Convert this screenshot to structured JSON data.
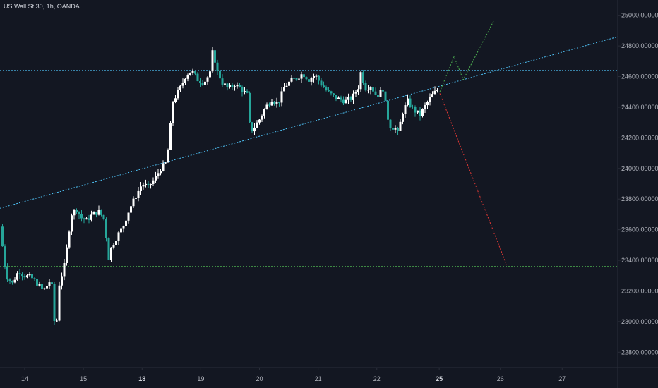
{
  "symbol_title": "US Wall St 30, 1h, OANDA",
  "colors": {
    "background": "#131722",
    "axis_border": "#2a2e39",
    "text": "#b2b5be",
    "candle_up": "#ffffff",
    "candle_down": "#26a69a",
    "resistance_line": "#4fc3f7",
    "support_line": "#4caf50",
    "bullish_projection": "#4caf50",
    "bearish_projection": "#e53935"
  },
  "chart_data": {
    "type": "candlestick",
    "title": "US Wall St 30, 1h, OANDA",
    "y_axis": {
      "side": "right",
      "range": [
        22700,
        25100
      ],
      "ticks": [
        "25000.00000",
        "24800.00000",
        "24600.00000",
        "24400.00000",
        "24200.00000",
        "24000.00000",
        "23800.00000",
        "23600.00000",
        "23400.00000",
        "23200.00000",
        "23000.00000",
        "22800.00000"
      ]
    },
    "x_axis": {
      "ticks": [
        {
          "label": "14",
          "t": 0.04,
          "bold": false
        },
        {
          "label": "15",
          "t": 0.135,
          "bold": false
        },
        {
          "label": "18",
          "t": 0.23,
          "bold": true
        },
        {
          "label": "19",
          "t": 0.325,
          "bold": false
        },
        {
          "label": "20",
          "t": 0.42,
          "bold": false
        },
        {
          "label": "21",
          "t": 0.515,
          "bold": false
        },
        {
          "label": "22",
          "t": 0.61,
          "bold": false
        },
        {
          "label": "25",
          "t": 0.711,
          "bold": true
        },
        {
          "label": "26",
          "t": 0.81,
          "bold": false
        },
        {
          "label": "27",
          "t": 0.91,
          "bold": false
        }
      ]
    },
    "grid": false,
    "price_path": [
      [
        0.0,
        23620
      ],
      [
        0.01,
        23300
      ],
      [
        0.02,
        23250
      ],
      [
        0.03,
        23330
      ],
      [
        0.04,
        23300
      ],
      [
        0.05,
        23290
      ],
      [
        0.06,
        23250
      ],
      [
        0.07,
        23200
      ],
      [
        0.08,
        23260
      ],
      [
        0.085,
        23220
      ],
      [
        0.09,
        22860
      ],
      [
        0.095,
        23230
      ],
      [
        0.105,
        23380
      ],
      [
        0.115,
        23700
      ],
      [
        0.125,
        23740
      ],
      [
        0.13,
        23680
      ],
      [
        0.14,
        23660
      ],
      [
        0.15,
        23700
      ],
      [
        0.16,
        23720
      ],
      [
        0.17,
        23660
      ],
      [
        0.175,
        23400
      ],
      [
        0.18,
        23480
      ],
      [
        0.19,
        23560
      ],
      [
        0.2,
        23630
      ],
      [
        0.21,
        23740
      ],
      [
        0.22,
        23820
      ],
      [
        0.23,
        23900
      ],
      [
        0.24,
        23880
      ],
      [
        0.25,
        23930
      ],
      [
        0.26,
        24000
      ],
      [
        0.27,
        24040
      ],
      [
        0.28,
        24440
      ],
      [
        0.29,
        24510
      ],
      [
        0.3,
        24600
      ],
      [
        0.31,
        24640
      ],
      [
        0.32,
        24580
      ],
      [
        0.33,
        24560
      ],
      [
        0.34,
        24620
      ],
      [
        0.345,
        24790
      ],
      [
        0.35,
        24650
      ],
      [
        0.36,
        24560
      ],
      [
        0.37,
        24520
      ],
      [
        0.38,
        24550
      ],
      [
        0.39,
        24520
      ],
      [
        0.4,
        24480
      ],
      [
        0.405,
        24240
      ],
      [
        0.41,
        24260
      ],
      [
        0.42,
        24320
      ],
      [
        0.43,
        24400
      ],
      [
        0.44,
        24450
      ],
      [
        0.45,
        24420
      ],
      [
        0.46,
        24530
      ],
      [
        0.47,
        24570
      ],
      [
        0.48,
        24590
      ],
      [
        0.49,
        24620
      ],
      [
        0.5,
        24580
      ],
      [
        0.51,
        24610
      ],
      [
        0.52,
        24550
      ],
      [
        0.53,
        24500
      ],
      [
        0.54,
        24470
      ],
      [
        0.55,
        24450
      ],
      [
        0.56,
        24440
      ],
      [
        0.57,
        24460
      ],
      [
        0.58,
        24530
      ],
      [
        0.585,
        24650
      ],
      [
        0.59,
        24520
      ],
      [
        0.6,
        24540
      ],
      [
        0.61,
        24470
      ],
      [
        0.62,
        24520
      ],
      [
        0.625,
        24400
      ],
      [
        0.63,
        24280
      ],
      [
        0.64,
        24260
      ],
      [
        0.645,
        24220
      ],
      [
        0.65,
        24350
      ],
      [
        0.66,
        24440
      ],
      [
        0.67,
        24380
      ],
      [
        0.68,
        24350
      ],
      [
        0.69,
        24420
      ],
      [
        0.7,
        24480
      ],
      [
        0.71,
        24520
      ]
    ],
    "drawings": [
      {
        "name": "resistance-line",
        "kind": "horizontal",
        "price": 24640,
        "color_key": "resistance_line"
      },
      {
        "name": "support-line",
        "kind": "horizontal",
        "price": 23360,
        "color_key": "support_line"
      },
      {
        "name": "ascending-trendline",
        "kind": "segment",
        "points": [
          [
            0.0,
            23740
          ],
          [
            1.0,
            24860
          ]
        ],
        "color_key": "resistance_line"
      },
      {
        "name": "bullish-projection",
        "kind": "path",
        "points": [
          [
            0.712,
            24500
          ],
          [
            0.735,
            24730
          ],
          [
            0.75,
            24580
          ],
          [
            0.8,
            24970
          ]
        ],
        "color_key": "bullish_projection"
      },
      {
        "name": "bearish-projection",
        "kind": "path",
        "points": [
          [
            0.712,
            24490
          ],
          [
            0.82,
            23370
          ]
        ],
        "color_key": "bearish_projection"
      }
    ]
  }
}
